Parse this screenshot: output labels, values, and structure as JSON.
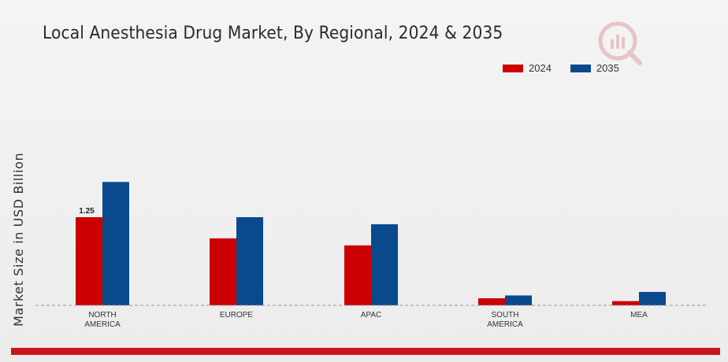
{
  "chart_data": {
    "type": "bar",
    "title": "Local Anesthesia Drug Market, By Regional, 2024 & 2035",
    "ylabel": "Market Size in USD Billion",
    "xlabel": "",
    "categories": [
      [
        "NORTH",
        "AMERICA"
      ],
      [
        "EUROPE"
      ],
      [
        "APAC"
      ],
      [
        "SOUTH",
        "AMERICA"
      ],
      [
        "MEA"
      ]
    ],
    "series": [
      {
        "name": "2024",
        "color": "#cc0000",
        "values": [
          1.25,
          0.95,
          0.85,
          0.1,
          0.06
        ]
      },
      {
        "name": "2035",
        "color": "#0a4a8c",
        "values": [
          1.75,
          1.25,
          1.15,
          0.14,
          0.19
        ]
      }
    ],
    "data_labels": [
      {
        "series": 0,
        "index": 0,
        "text": "1.25"
      }
    ],
    "ylim": [
      0,
      2.5
    ],
    "grid": false,
    "legend_position": "top-right"
  },
  "colors": {
    "accent_bar": "#c8161d"
  },
  "logo_icon": "market-research-logo-icon"
}
